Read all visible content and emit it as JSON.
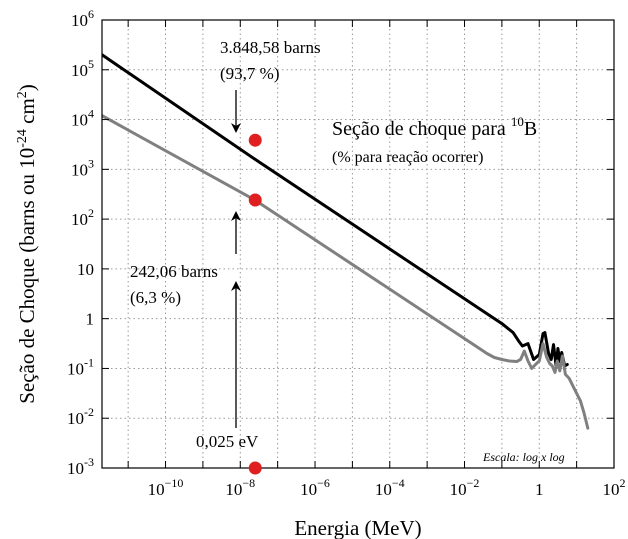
{
  "chart_data": {
    "type": "line",
    "title": "Seção de choque para ",
    "title_sup": "10",
    "title_suffix": "B",
    "subtitle": "(% para reação ocorrer)",
    "xlabel": "Energia (MeV)",
    "ylabel_main": "Seção de Choque (barns ou 10",
    "ylabel_exp": "-24",
    "ylabel_mid": " cm",
    "ylabel_sq": "2",
    "ylabel_end": ")",
    "xscale": "log",
    "yscale": "log",
    "xlim_exp": [
      -11.7,
      2
    ],
    "ylim_exp": [
      -3,
      6
    ],
    "grid": true,
    "x_ticks": [
      {
        "base": "10",
        "exp": "−10",
        "pos": -10
      },
      {
        "base": "10",
        "exp": "−8",
        "pos": -8
      },
      {
        "base": "10",
        "exp": "−6",
        "pos": -6
      },
      {
        "base": "10",
        "exp": "−4",
        "pos": -4
      },
      {
        "base": "10",
        "exp": "−2",
        "pos": -2
      },
      {
        "base": "1",
        "exp": "",
        "pos": 0
      },
      {
        "base": "10",
        "exp": "2",
        "pos": 2
      }
    ],
    "y_ticks": [
      {
        "base": "10",
        "exp": "-3",
        "pos": -3
      },
      {
        "base": "10",
        "exp": "-2",
        "pos": -2
      },
      {
        "base": "10",
        "exp": "-1",
        "pos": -1
      },
      {
        "base": "1",
        "exp": "",
        "pos": 0
      },
      {
        "base": "10",
        "exp": "",
        "pos": 1
      },
      {
        "base": "10",
        "exp": "2",
        "pos": 2
      },
      {
        "base": "10",
        "exp": "3",
        "pos": 3
      },
      {
        "base": "10",
        "exp": "4",
        "pos": 4
      },
      {
        "base": "10",
        "exp": "5",
        "pos": 5
      },
      {
        "base": "10",
        "exp": "6",
        "pos": 6
      }
    ],
    "series": [
      {
        "color": "#000000",
        "x_log": [
          -11.7,
          -7.6,
          -2.0,
          -1.6,
          -1.0,
          -0.7,
          -0.55,
          -0.45,
          -0.3,
          -0.15,
          0.0,
          0.1,
          0.15,
          0.25,
          0.32,
          0.38,
          0.45,
          0.5,
          0.55,
          0.6,
          0.68,
          0.75
        ],
        "y_log": [
          5.3,
          3.2,
          0.4,
          0.2,
          -0.1,
          -0.28,
          -0.45,
          -0.55,
          -0.5,
          -0.82,
          -0.72,
          -0.3,
          -0.28,
          -0.7,
          -0.82,
          -0.52,
          -0.95,
          -0.6,
          -0.86,
          -0.68,
          -0.95,
          -0.92
        ]
      },
      {
        "color": "#808080",
        "x_log": [
          -11.7,
          -7.6,
          -2.0,
          -1.7,
          -1.4,
          -1.2,
          -1.0,
          -0.8,
          -0.6,
          -0.5,
          -0.4,
          -0.3,
          -0.2,
          -0.1,
          0.0,
          0.05,
          0.1,
          0.2,
          0.28,
          0.35,
          0.42,
          0.48,
          0.55,
          0.62,
          0.7,
          0.8,
          0.9,
          1.0,
          1.1,
          1.2,
          1.3
        ],
        "y_log": [
          4.08,
          2.38,
          -0.4,
          -0.55,
          -0.7,
          -0.78,
          -0.82,
          -0.85,
          -0.86,
          -0.82,
          -0.65,
          -0.85,
          -1.0,
          -0.92,
          -0.85,
          -0.68,
          -0.5,
          -0.78,
          -0.9,
          -0.95,
          -1.08,
          -0.85,
          -1.05,
          -0.75,
          -1.12,
          -1.2,
          -1.35,
          -1.5,
          -1.65,
          -1.9,
          -2.2
        ]
      }
    ],
    "points": [
      {
        "x_log": -7.6,
        "y_log": 3.585,
        "color": "#e02020"
      },
      {
        "x_log": -7.6,
        "y_log": 2.384,
        "color": "#e02020"
      },
      {
        "x_log": -7.6,
        "y_log": -3.0,
        "color": "#e02020"
      }
    ],
    "annotations": {
      "top_value": "3.848,58 barns",
      "top_pct": "(93,7 %)",
      "mid_value": "242,06 barns",
      "mid_pct": "(6,3 %)",
      "bottom_label": "0,025 eV",
      "scale_note": "Escala: log x log"
    }
  }
}
